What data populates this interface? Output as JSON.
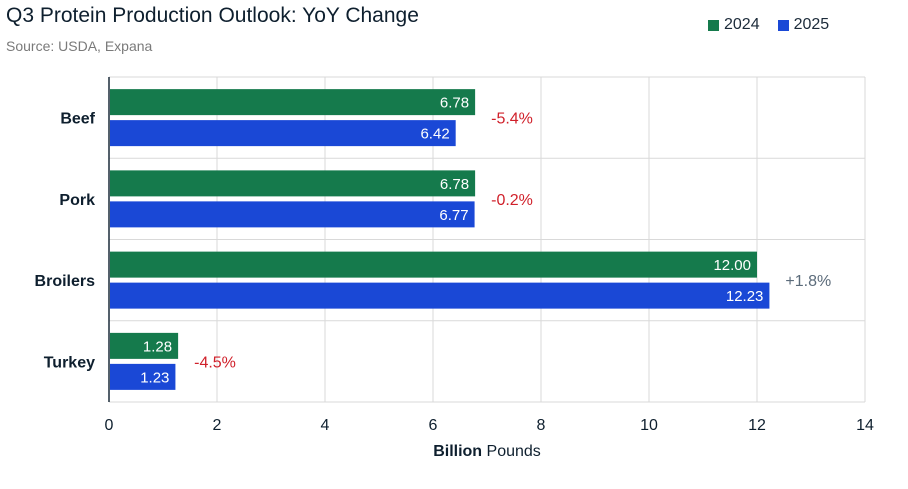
{
  "chart_data": {
    "type": "bar",
    "orientation": "horizontal",
    "title": "Q3 Protein Production Outlook: YoY Change",
    "subtitle": "Source: USDA, Expana",
    "categories": [
      "Beef",
      "Pork",
      "Broilers",
      "Turkey"
    ],
    "series": [
      {
        "name": "2024",
        "color": "#157a4c",
        "values": [
          6.78,
          6.78,
          12.0,
          1.28
        ],
        "labels": [
          "6.78",
          "6.78",
          "12.00",
          "1.28"
        ]
      },
      {
        "name": "2025",
        "color": "#1a48d6",
        "values": [
          6.42,
          6.77,
          12.23,
          1.23
        ],
        "labels": [
          "6.42",
          "6.77",
          "12.23",
          "1.23"
        ]
      }
    ],
    "annotations": [
      {
        "category": "Beef",
        "text": "-5.4%",
        "color": "#d0202a"
      },
      {
        "category": "Pork",
        "text": "-0.2%",
        "color": "#d0202a"
      },
      {
        "category": "Broilers",
        "text": "+1.8%",
        "color": "#5b6b7a"
      },
      {
        "category": "Turkey",
        "text": "-4.5%",
        "color": "#d0202a"
      }
    ],
    "xlabel_bold": "Billion",
    "xlabel_rest": " Pounds",
    "xlim": [
      0,
      14
    ],
    "xticks": [
      0,
      2,
      4,
      6,
      8,
      10,
      12,
      14
    ],
    "grid": true,
    "legend_position": "top-right"
  }
}
